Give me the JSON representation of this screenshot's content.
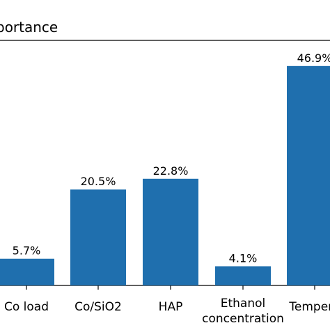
{
  "chart_data": {
    "type": "bar",
    "title": "...portance",
    "categories": [
      "Co load",
      "Co/SiO2",
      "HAP",
      "Ethanol\nconcentration",
      "Tempera..."
    ],
    "values": [
      5.7,
      20.5,
      22.8,
      4.1,
      46.9
    ],
    "value_labels": [
      "5.7%",
      "20.5%",
      "22.8%",
      "4.1%",
      "46.9%"
    ],
    "ylim": [
      0,
      50
    ],
    "bar_color": "#1f6fae",
    "grid": false,
    "xlabel": "",
    "ylabel": ""
  }
}
